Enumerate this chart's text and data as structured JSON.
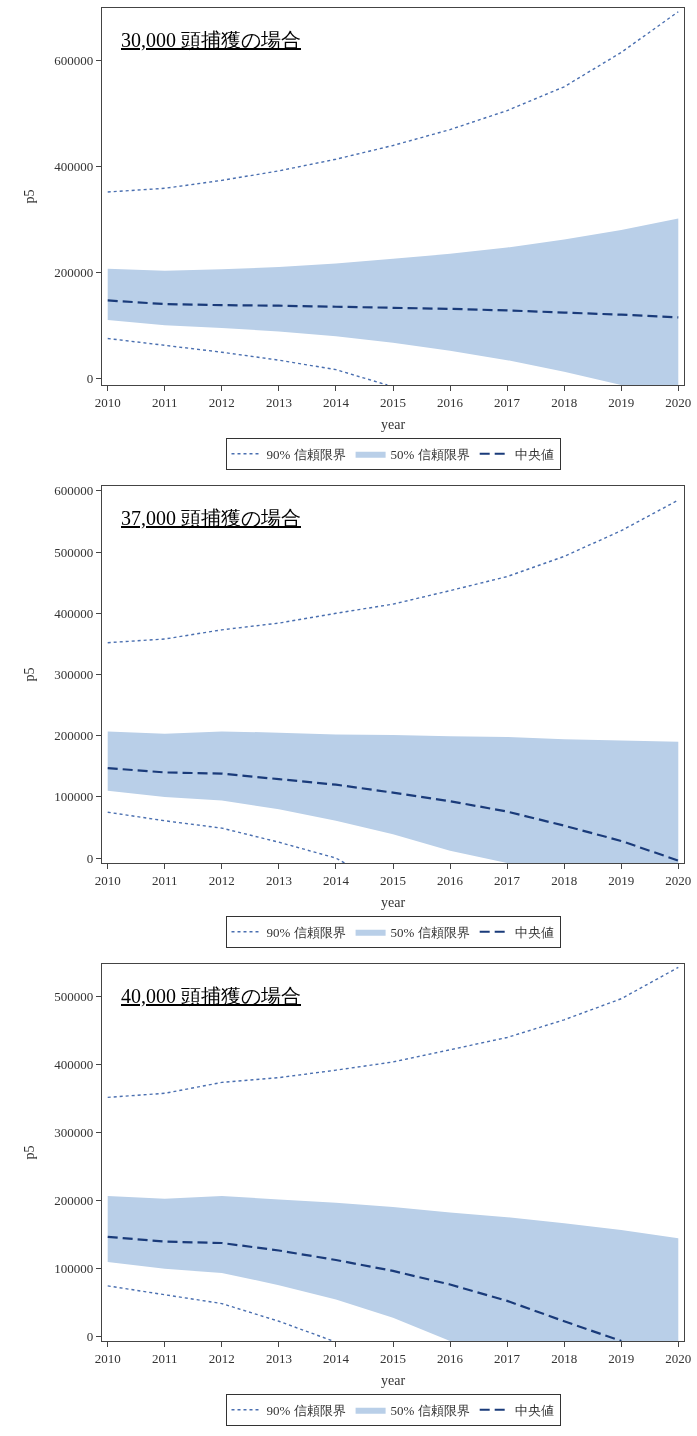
{
  "chart_data": [
    {
      "type": "line",
      "title": "30,000 頭捕獲の場合",
      "xlabel": "year",
      "ylabel": "p5",
      "annotations": [
        "50% 信頼限界"
      ],
      "x": [
        2010,
        2011,
        2012,
        2013,
        2014,
        2015,
        2016,
        2017,
        2018,
        2019,
        2020
      ],
      "xlim": [
        2009.9,
        2020.1
      ],
      "xticks": [
        2010,
        2011,
        2012,
        2013,
        2014,
        2015,
        2016,
        2017,
        2018,
        2019,
        2020
      ],
      "ylim": [
        -13000,
        700000
      ],
      "yticks": [
        0,
        200000,
        400000,
        600000
      ],
      "legend": "bottom",
      "series": [
        {
          "name": "90% 信頼限界",
          "line_style": "dotted",
          "color": "#4a6fb0",
          "values": [
            352000,
            359000,
            374000,
            392000,
            414000,
            440000,
            470000,
            506000,
            551000,
            616000,
            693000
          ]
        },
        {
          "line_style": "dotted",
          "color": "#4a6fb0",
          "x": [
            2010,
            2011,
            2012,
            2013,
            2014,
            2014.9
          ],
          "values": [
            75000,
            62000,
            49000,
            34000,
            16000,
            -13000
          ]
        },
        {
          "name": "中央値",
          "line_style": "dashed",
          "color": "#1a3b7a",
          "values": [
            147000,
            140000,
            138000,
            137000,
            135000,
            133000,
            131000,
            128000,
            124000,
            120000,
            115000
          ],
          "upper": [
            207000,
            203000,
            206000,
            210000,
            217000,
            226000,
            235000,
            247000,
            262000,
            280000,
            302000
          ],
          "lower": [
            110000,
            100000,
            95000,
            88000,
            79000,
            67000,
            52000,
            34000,
            12000,
            -13000,
            -13000
          ]
        }
      ]
    },
    {
      "type": "line",
      "title": "37,000 頭捕獲の場合",
      "xlabel": "year",
      "ylabel": "p5",
      "annotations": [
        "50% 信頼限界"
      ],
      "x": [
        2010,
        2011,
        2012,
        2013,
        2014,
        2015,
        2016,
        2017,
        2018,
        2019,
        2020
      ],
      "xlim": [
        2009.9,
        2020.1
      ],
      "xticks": [
        2010,
        2011,
        2012,
        2013,
        2014,
        2015,
        2016,
        2017,
        2018,
        2019,
        2020
      ],
      "ylim": [
        -8000,
        608000
      ],
      "yticks": [
        0,
        100000,
        200000,
        300000,
        400000,
        500000,
        600000
      ],
      "legend": "bottom",
      "series": [
        {
          "name": "90% 信頼限界",
          "line_style": "dotted",
          "color": "#4a6fb0",
          "values": [
            352000,
            358000,
            373000,
            384000,
            400000,
            415000,
            437000,
            460000,
            493000,
            535000,
            585000
          ]
        },
        {
          "line_style": "dotted",
          "color": "#4a6fb0",
          "x": [
            2010,
            2011,
            2012,
            2013,
            2014,
            2014.15
          ],
          "values": [
            75000,
            61000,
            49000,
            26000,
            0,
            -8000
          ]
        },
        {
          "name": "中央値",
          "line_style": "dashed",
          "color": "#1a3b7a",
          "values": [
            147000,
            140000,
            138000,
            129000,
            120000,
            107000,
            93000,
            76000,
            53000,
            28000,
            -4000
          ],
          "upper": [
            207000,
            203000,
            207000,
            205000,
            202000,
            201000,
            199000,
            198000,
            194000,
            192000,
            190000
          ],
          "lower": [
            110000,
            100000,
            94000,
            80000,
            61000,
            39000,
            12000,
            -8000,
            -8000,
            -8000,
            -8000
          ]
        }
      ]
    },
    {
      "type": "line",
      "title": "40,000 頭捕獲の場合",
      "xlabel": "year",
      "ylabel": "p5",
      "annotations": [
        "50% 信頼限界"
      ],
      "x": [
        2010,
        2011,
        2012,
        2013,
        2014,
        2015,
        2016,
        2017,
        2018,
        2019,
        2020
      ],
      "xlim": [
        2009.9,
        2020.1
      ],
      "xticks": [
        2010,
        2011,
        2012,
        2013,
        2014,
        2015,
        2016,
        2017,
        2018,
        2019,
        2020
      ],
      "ylim": [
        -6000,
        548000
      ],
      "yticks": [
        0,
        100000,
        200000,
        300000,
        400000,
        500000
      ],
      "legend": "bottom",
      "series": [
        {
          "name": "90% 信頼限界",
          "line_style": "dotted",
          "color": "#4a6fb0",
          "values": [
            352000,
            358000,
            374000,
            381000,
            392000,
            404000,
            422000,
            440000,
            466000,
            497000,
            543000
          ]
        },
        {
          "line_style": "dotted",
          "color": "#4a6fb0",
          "x": [
            2010,
            2011,
            2012,
            2013,
            2013.95
          ],
          "values": [
            75000,
            62000,
            49000,
            23000,
            -6000
          ]
        },
        {
          "name": "中央値",
          "line_style": "dashed",
          "color": "#1a3b7a",
          "values": [
            147000,
            140000,
            138000,
            127000,
            113000,
            97000,
            77000,
            53000,
            23000,
            -6000,
            null
          ],
          "upper": [
            207000,
            203000,
            207000,
            202000,
            197000,
            191000,
            183000,
            176000,
            167000,
            157000,
            145000
          ],
          "lower": [
            110000,
            100000,
            94000,
            76000,
            55000,
            28000,
            -6000,
            -6000,
            -6000,
            -6000,
            -6000
          ]
        }
      ]
    }
  ]
}
